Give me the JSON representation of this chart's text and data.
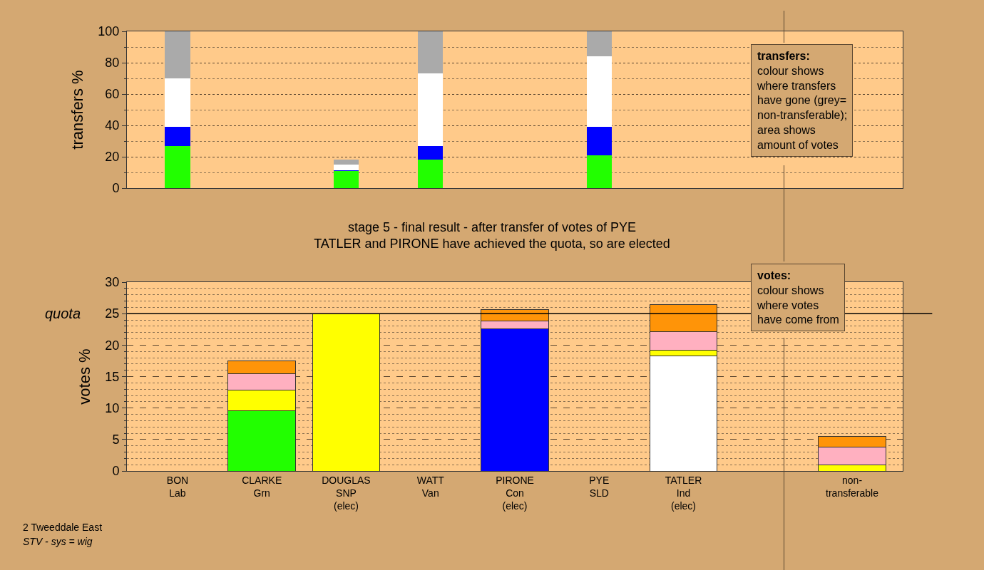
{
  "chart_data": [
    {
      "type": "bar",
      "stacked": true,
      "ylabel": "transfers %",
      "tick_labels": "y",
      "grid": true,
      "categories": [
        null,
        null,
        null,
        null,
        null,
        null,
        null,
        null,
        null
      ],
      "ylim": [
        0,
        100
      ],
      "yticks": [
        0,
        {
          "value": 10,
          "label": null
        },
        20,
        {
          "value": 30,
          "label": null
        },
        40,
        {
          "value": 50,
          "label": null
        },
        60,
        {
          "value": 70,
          "label": null
        },
        80,
        {
          "value": 90,
          "label": null
        },
        100
      ],
      "series": [
        {
          "color": "#22ff00",
          "values": [
            27,
            null,
            11,
            18,
            null,
            21,
            null,
            null,
            null
          ]
        },
        {
          "color": "#0000ff",
          "values": [
            12,
            null,
            0.5,
            9,
            null,
            18,
            null,
            null,
            null
          ]
        },
        {
          "color": "#ffffff",
          "values": [
            31,
            null,
            3.5,
            46,
            null,
            45,
            null,
            null,
            null
          ]
        },
        {
          "color": "#aaaaaa",
          "values": [
            30,
            null,
            3,
            27,
            null,
            16,
            null,
            null,
            null
          ]
        }
      ],
      "annotations": [
        "transfers:\ncolour shows\nwhere transfers\nhave gone (grey=\nnon-transferable);\narea shows\namount of votes"
      ]
    },
    {
      "type": "bar",
      "stacked": true,
      "title": "stage 5 - final result - after transfer of votes of PYE",
      "subtitle": "TATLER and PIRONE have achieved the quota, so are elected",
      "ylabel": "votes %",
      "grid": true,
      "categories": [
        "BON\nLab",
        "CLARKE\nGrn",
        "DOUGLAS\nSNP\n(elec)",
        "WATT\nVan",
        "PIRONE\nCon\n(elec)",
        "PYE\nSLD",
        "TATLER\nInd\n(elec)",
        null,
        "non-\ntransferable"
      ],
      "ylim": [
        0,
        30
      ],
      "yticks": [
        0,
        {
          "value": 1,
          "label": null
        },
        {
          "value": 2,
          "label": null
        },
        {
          "value": 3,
          "label": null
        },
        {
          "value": 4,
          "label": null
        },
        5,
        {
          "value": 6,
          "label": null
        },
        {
          "value": 7,
          "label": null
        },
        {
          "value": 8,
          "label": null
        },
        {
          "value": 9,
          "label": null
        },
        10,
        {
          "value": 11,
          "label": null
        },
        {
          "value": 12,
          "label": null
        },
        {
          "value": 13,
          "label": null
        },
        {
          "value": 14,
          "label": null
        },
        15,
        {
          "value": 16,
          "label": null
        },
        {
          "value": 17,
          "label": null
        },
        {
          "value": 18,
          "label": null
        },
        {
          "value": 19,
          "label": null
        },
        20,
        {
          "value": 21,
          "label": null
        },
        {
          "value": 22,
          "label": null
        },
        {
          "value": 23,
          "label": null
        },
        {
          "value": 24,
          "label": null
        },
        25,
        {
          "value": 26,
          "label": null
        },
        {
          "value": 27,
          "label": null
        },
        {
          "value": 28,
          "label": null
        },
        {
          "value": 29,
          "label": null
        },
        30
      ],
      "series": [
        {
          "color": "#22ff00",
          "values": [
            null,
            9.6,
            null,
            null,
            null,
            null,
            null,
            null,
            null
          ]
        },
        {
          "color": "#0000ff",
          "values": [
            null,
            null,
            null,
            null,
            22.6,
            null,
            null,
            null,
            null
          ]
        },
        {
          "color": "#ffffff",
          "values": [
            null,
            null,
            null,
            null,
            null,
            null,
            18.3,
            null,
            null
          ]
        },
        {
          "color": "#ffff00",
          "values": [
            null,
            3.3,
            25,
            null,
            null,
            null,
            0.9,
            null,
            1.0
          ]
        },
        {
          "color": "#ffb0c0",
          "values": [
            null,
            2.5,
            null,
            null,
            1.2,
            null,
            2.9,
            null,
            2.8
          ]
        },
        {
          "color": "#ff9408",
          "values": [
            null,
            2.1,
            null,
            null,
            1.8,
            null,
            4.3,
            null,
            1.7
          ]
        }
      ],
      "ref_lines": [
        {
          "axis": "y",
          "value": 25,
          "label": "quota",
          "color": "#000000"
        }
      ],
      "annotations": [
        "votes:\ncolour shows\nwhere votes\nhave come from",
        "2 Tweeddale East",
        "STV - sys = wig"
      ]
    }
  ]
}
